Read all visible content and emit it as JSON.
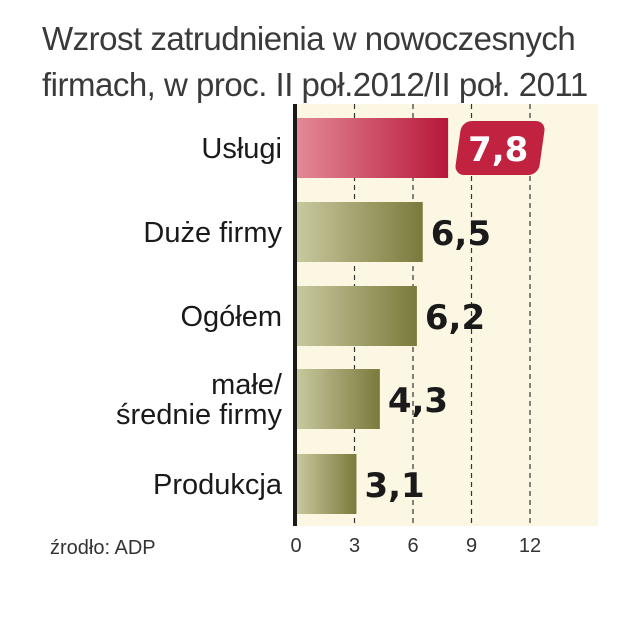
{
  "chart_data": {
    "type": "bar",
    "orientation": "horizontal",
    "title_lines": [
      "Wzrost zatrudnienia w nowoczesnych",
      "firmach, w proc. II poł.2012/II poł. 2011"
    ],
    "categories": [
      [
        "Usługi"
      ],
      [
        "Duże firmy"
      ],
      [
        "Ogółem"
      ],
      [
        "małe/",
        "średnie firmy"
      ],
      [
        "Produkcja"
      ]
    ],
    "values": [
      7.8,
      6.5,
      6.2,
      4.3,
      3.1
    ],
    "value_labels": [
      "7,8",
      "6,5",
      "6,2",
      "4,3",
      "3,1"
    ],
    "highlight_index": 0,
    "xlim": [
      0,
      12
    ],
    "xticks": [
      0,
      3,
      6,
      9,
      12
    ],
    "grid": "vertical dashed",
    "colors": {
      "highlight_bar": "#c0223f",
      "bar": "#8a8a4c",
      "background_band": "#fbf7e3",
      "axis": "#1a1a1a"
    }
  },
  "source": "źrodło: ADP"
}
